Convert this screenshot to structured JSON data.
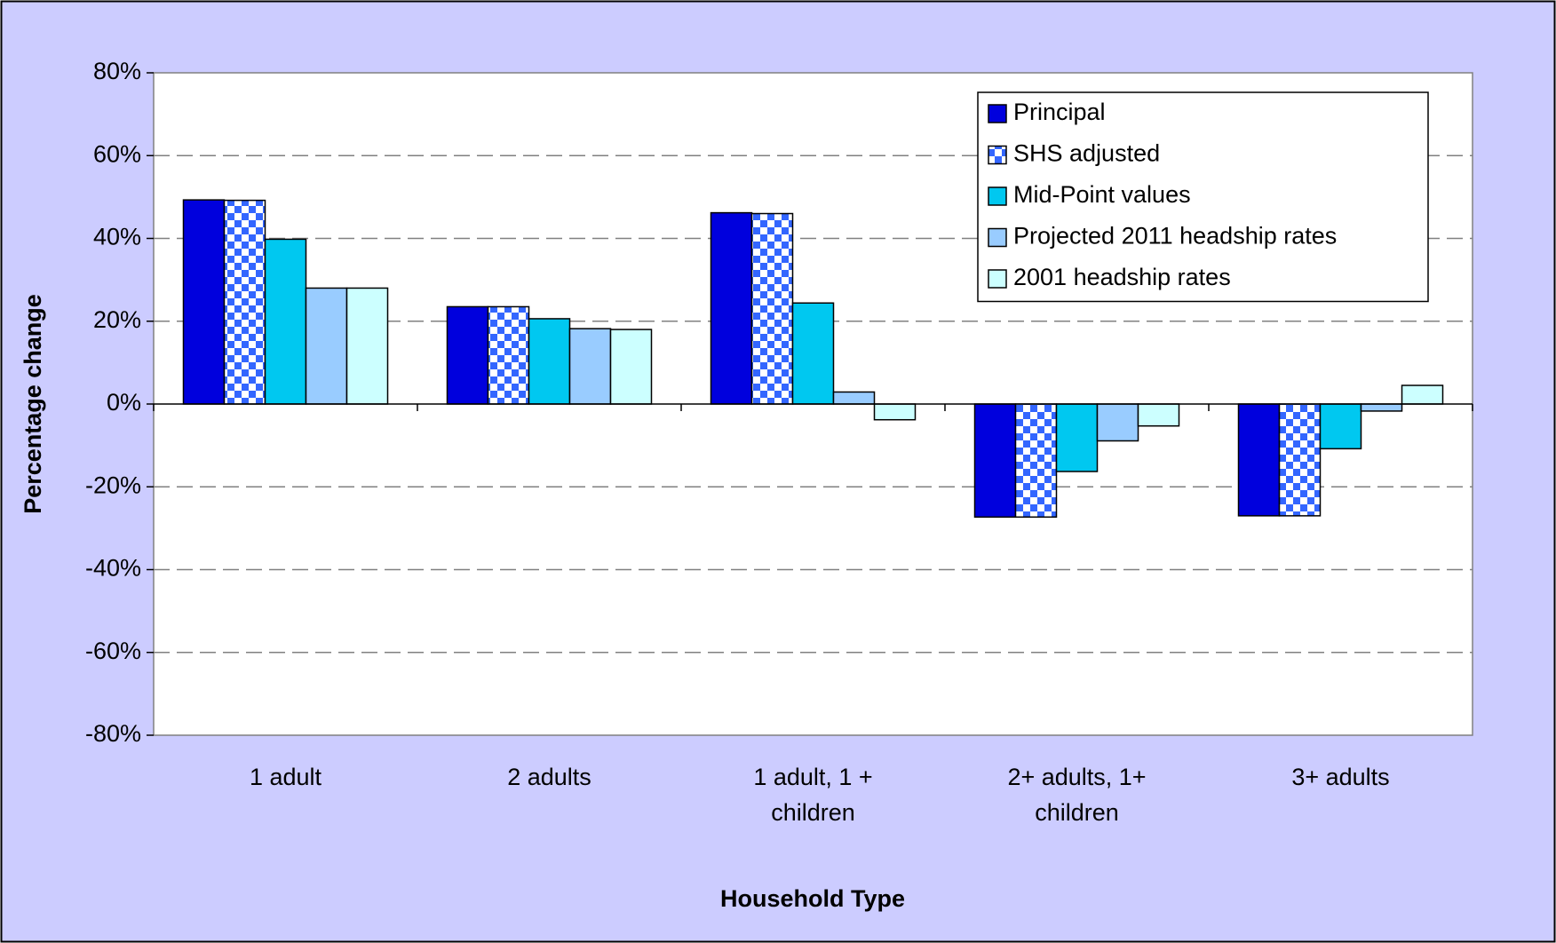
{
  "chart_data": {
    "type": "bar",
    "x_label": "Household Type",
    "y_label": "Percentage change",
    "categories": [
      [
        "1 adult"
      ],
      [
        "2 adults"
      ],
      [
        "1 adult, 1 +",
        "children"
      ],
      [
        "2+ adults, 1+",
        "children"
      ],
      [
        "3+ adults"
      ]
    ],
    "series": [
      {
        "name": "Principal",
        "color": "#0000dd",
        "values": [
          49.3,
          23.5,
          46.2,
          -27.3,
          -27
        ]
      },
      {
        "name": "SHS adjusted",
        "color": "#3366ff",
        "pattern": "checker",
        "values": [
          49.2,
          23.5,
          46,
          -27.3,
          -27
        ]
      },
      {
        "name": "Mid-Point values",
        "color": "#00c8f0",
        "values": [
          39.8,
          20.6,
          24.4,
          -16.3,
          -10.8
        ]
      },
      {
        "name": "Projected 2011 headship rates",
        "color": "#99ccff",
        "values": [
          28,
          18.2,
          2.9,
          -8.9,
          -1.7
        ]
      },
      {
        "name": "2001 headship rates",
        "color": "#ccffff",
        "values": [
          28,
          18,
          -3.8,
          -5.3,
          4.5
        ]
      }
    ],
    "ylim": [
      -80,
      80
    ],
    "yticks": [
      {
        "value": -80,
        "label": "-80%"
      },
      {
        "value": -60,
        "label": "-60%"
      },
      {
        "value": -40,
        "label": "-40%"
      },
      {
        "value": -20,
        "label": "-20%"
      },
      {
        "value": 0,
        "label": "0%"
      },
      {
        "value": 20,
        "label": "20%"
      },
      {
        "value": 40,
        "label": "40%"
      },
      {
        "value": 60,
        "label": "60%"
      },
      {
        "value": 80,
        "label": "80%"
      }
    ],
    "grid": true,
    "legend": "upper right"
  }
}
